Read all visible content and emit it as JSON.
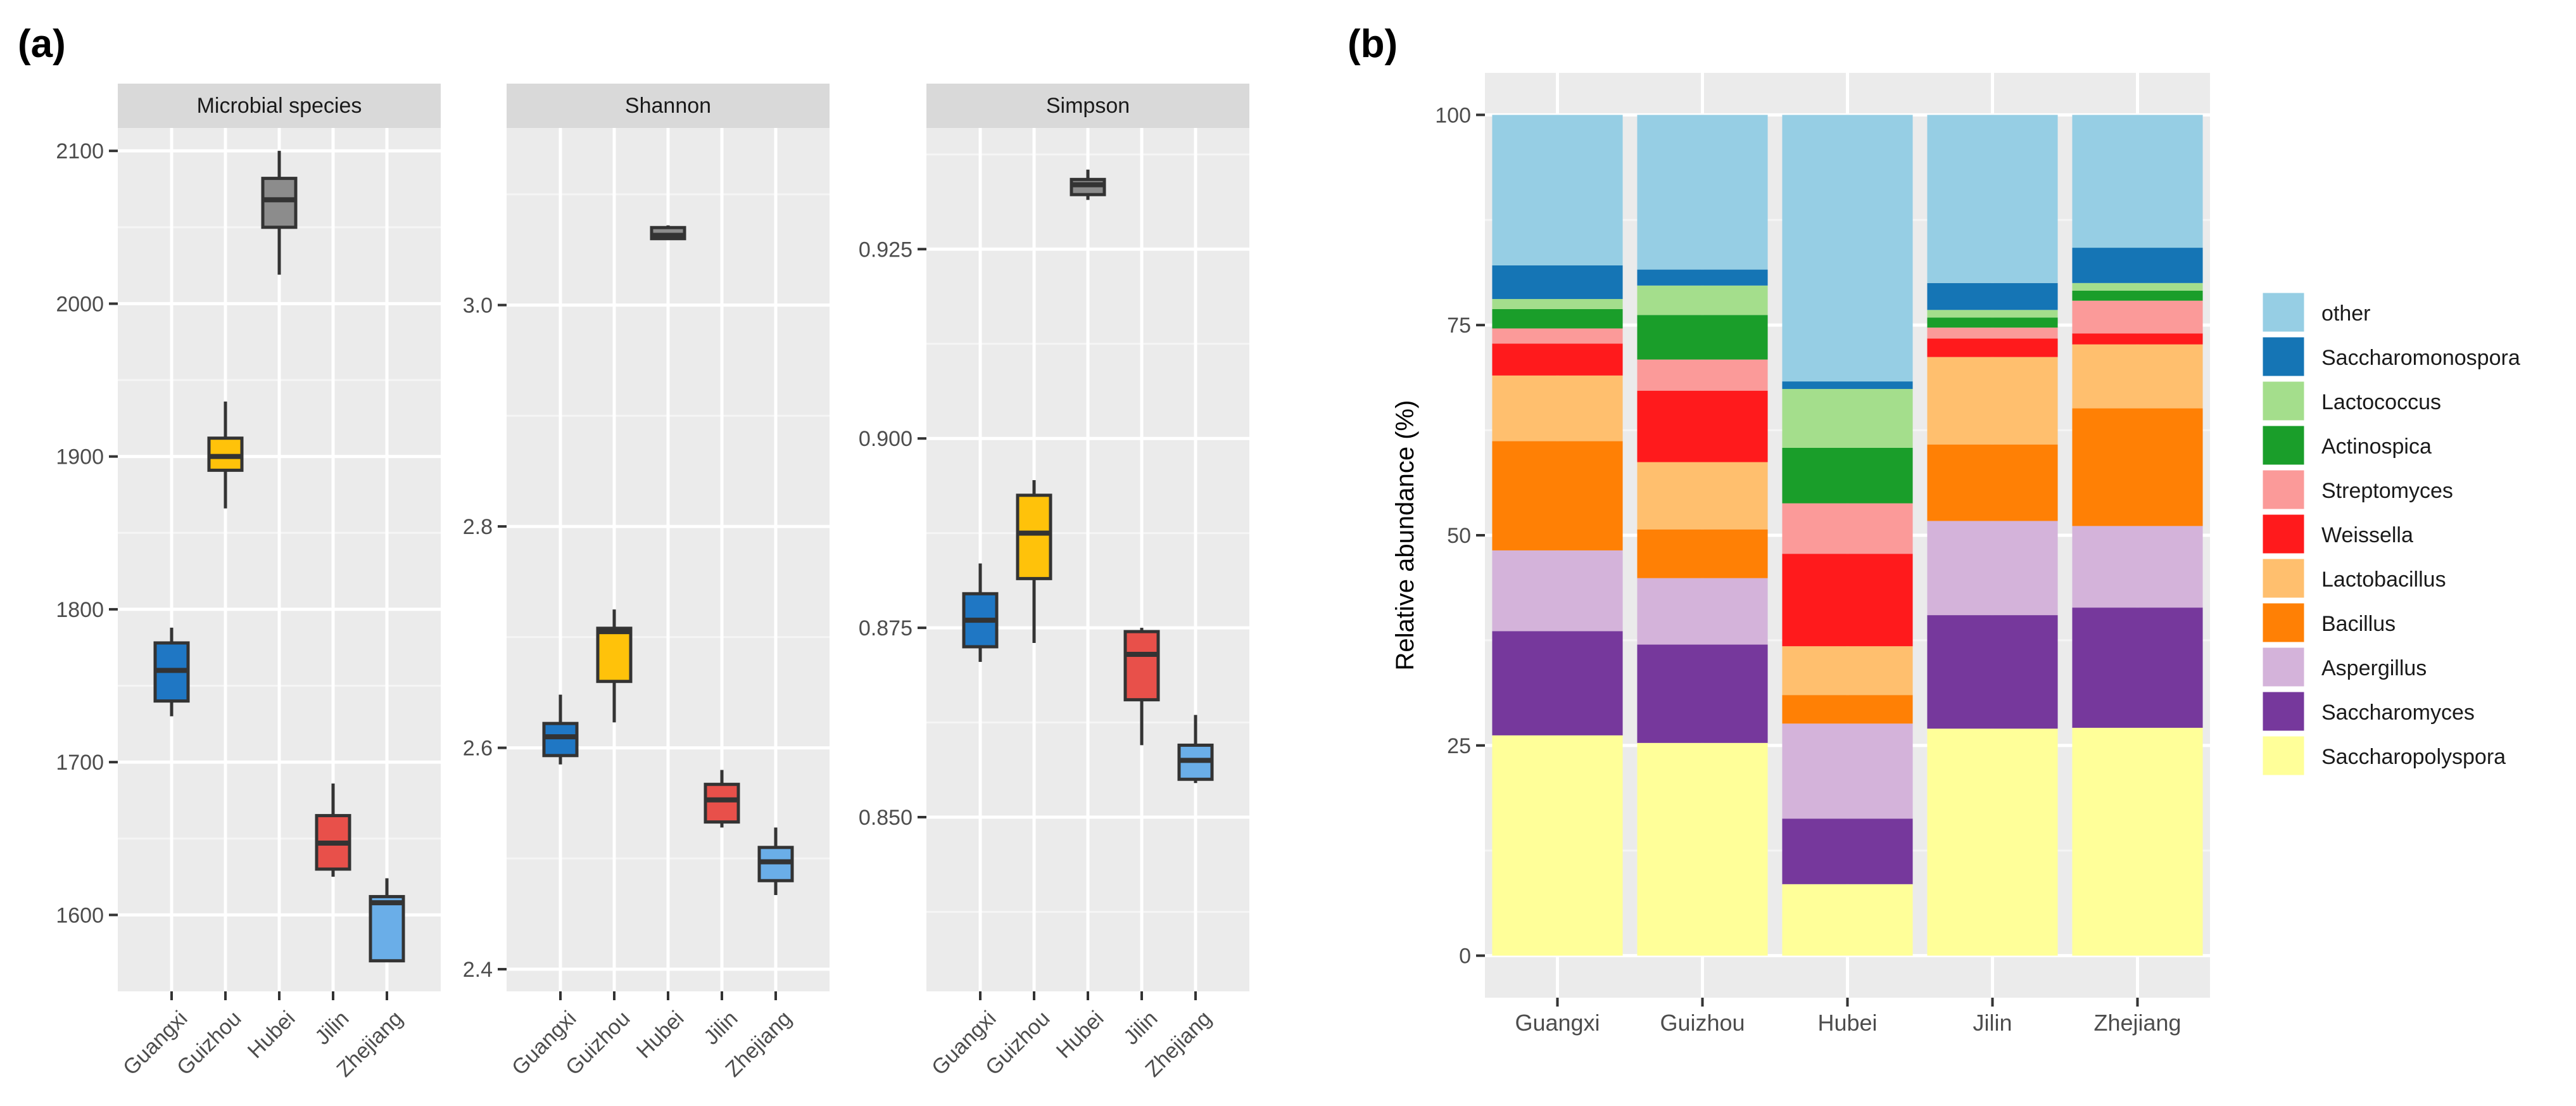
{
  "panel_a_label": "(a)",
  "panel_b_label": "(b)",
  "chart_data": [
    {
      "type": "boxplot",
      "title": "Microbial species",
      "categories": [
        "Guangxi",
        "Guizhou",
        "Hubei",
        "Jilin",
        "Zhejiang"
      ],
      "colors": [
        "#1f77c4",
        "#ffc20a",
        "#8c8c8c",
        "#e8504a",
        "#6aaee8"
      ],
      "ylim": [
        1550,
        2115
      ],
      "yticks": [
        1600,
        1700,
        1800,
        1900,
        2000,
        2100
      ],
      "ytick_labels": [
        "1600",
        "1700",
        "1800",
        "1900",
        "2000",
        "2100"
      ],
      "boxes": [
        {
          "min": 1730,
          "q1": 1740,
          "median": 1760,
          "q3": 1778,
          "max": 1788
        },
        {
          "min": 1866,
          "q1": 1891,
          "median": 1900,
          "q3": 1912,
          "max": 1936
        },
        {
          "min": 2019,
          "q1": 2050,
          "median": 2068,
          "q3": 2082,
          "max": 2100
        },
        {
          "min": 1625,
          "q1": 1630,
          "median": 1647,
          "q3": 1665,
          "max": 1686
        },
        {
          "min": 1570,
          "q1": 1570,
          "median": 1608,
          "q3": 1612,
          "max": 1624
        }
      ]
    },
    {
      "type": "boxplot",
      "title": "Shannon",
      "categories": [
        "Guangxi",
        "Guizhou",
        "Hubei",
        "Jilin",
        "Zhejiang"
      ],
      "colors": [
        "#1f77c4",
        "#ffc20a",
        "#8c8c8c",
        "#e8504a",
        "#6aaee8"
      ],
      "ylim": [
        2.38,
        3.16
      ],
      "yticks": [
        2.4,
        2.6,
        2.8,
        3.0
      ],
      "ytick_labels": [
        "2.4",
        "2.6",
        "2.8",
        "3.0"
      ],
      "boxes": [
        {
          "min": 2.585,
          "q1": 2.593,
          "median": 2.61,
          "q3": 2.622,
          "max": 2.648
        },
        {
          "min": 2.623,
          "q1": 2.66,
          "median": 2.705,
          "q3": 2.708,
          "max": 2.725
        },
        {
          "min": 3.06,
          "q1": 3.06,
          "median": 3.063,
          "q3": 3.07,
          "max": 3.072
        },
        {
          "min": 2.528,
          "q1": 2.533,
          "median": 2.553,
          "q3": 2.567,
          "max": 2.58
        },
        {
          "min": 2.467,
          "q1": 2.48,
          "median": 2.497,
          "q3": 2.51,
          "max": 2.528
        }
      ]
    },
    {
      "type": "boxplot",
      "title": "Simpson",
      "categories": [
        "Guangxi",
        "Guizhou",
        "Hubei",
        "Jilin",
        "Zhejiang"
      ],
      "colors": [
        "#1f77c4",
        "#ffc20a",
        "#8c8c8c",
        "#e8504a",
        "#6aaee8"
      ],
      "ylim": [
        0.827,
        0.941
      ],
      "yticks": [
        0.85,
        0.875,
        0.9,
        0.925
      ],
      "ytick_labels": [
        "0.850",
        "0.875",
        "0.900",
        "0.925"
      ],
      "boxes": [
        {
          "min": 0.8705,
          "q1": 0.8725,
          "median": 0.876,
          "q3": 0.8795,
          "max": 0.8835
        },
        {
          "min": 0.873,
          "q1": 0.8815,
          "median": 0.8875,
          "q3": 0.8925,
          "max": 0.8945
        },
        {
          "min": 0.9315,
          "q1": 0.9322,
          "median": 0.9335,
          "q3": 0.9342,
          "max": 0.9355
        },
        {
          "min": 0.8595,
          "q1": 0.8655,
          "median": 0.8715,
          "q3": 0.8745,
          "max": 0.875
        },
        {
          "min": 0.8545,
          "q1": 0.855,
          "median": 0.8575,
          "q3": 0.8595,
          "max": 0.8635
        }
      ]
    },
    {
      "type": "stacked_bar",
      "categories": [
        "Guangxi",
        "Guizhou",
        "Hubei",
        "Jilin",
        "Zhejiang"
      ],
      "ylabel": "Relative abundance (%)",
      "xlabel": "",
      "ylim": [
        -5,
        105
      ],
      "yticks": [
        0,
        25,
        50,
        75,
        100
      ],
      "ytick_labels": [
        "0",
        "25",
        "50",
        "75",
        "100"
      ],
      "legend_position": "right",
      "legend_order": [
        "other",
        "Saccharomonospora",
        "Lactococcus",
        "Actinospica",
        "Streptomyces",
        "Weissella",
        "Lactobacillus",
        "Bacillus",
        "Aspergillus",
        "Saccharomyces",
        "Saccharopolyspora"
      ],
      "series": [
        {
          "name": "Saccharopolyspora",
          "color": "#ffff99",
          "values": [
            26.2,
            25.3,
            8.5,
            27,
            27.1
          ]
        },
        {
          "name": "Saccharomyces",
          "color": "#76389c",
          "values": [
            12.4,
            11.7,
            7.8,
            13.5,
            14.3
          ]
        },
        {
          "name": "Aspergillus",
          "color": "#d4b3da",
          "values": [
            9.6,
            7.9,
            11.3,
            11.2,
            9.7
          ]
        },
        {
          "name": "Bacillus",
          "color": "#ff8005",
          "values": [
            13.0,
            5.8,
            3.4,
            9.1,
            14.0
          ]
        },
        {
          "name": "Lactobacillus",
          "color": "#ffbf6e",
          "values": [
            7.8,
            8.0,
            5.8,
            10.4,
            7.6
          ]
        },
        {
          "name": "Weissella",
          "color": "#ff1a1c",
          "values": [
            3.8,
            8.5,
            11.0,
            2.2,
            1.3
          ]
        },
        {
          "name": "Streptomyces",
          "color": "#fb9a99",
          "values": [
            1.8,
            3.7,
            6.0,
            1.3,
            3.9
          ]
        },
        {
          "name": "Actinospica",
          "color": "#1a9e2a",
          "values": [
            2.3,
            5.3,
            6.6,
            1.2,
            1.2
          ]
        },
        {
          "name": "Lactococcus",
          "color": "#a4de8c",
          "values": [
            1.2,
            3.5,
            7.0,
            0.9,
            0.9
          ]
        },
        {
          "name": "Saccharomonospora",
          "color": "#1575b5",
          "values": [
            4.0,
            1.9,
            0.9,
            3.2,
            4.2
          ]
        },
        {
          "name": "other",
          "color": "#96cee4",
          "values": [
            17.9,
            18.4,
            31.7,
            20.0,
            15.8
          ]
        }
      ]
    }
  ]
}
